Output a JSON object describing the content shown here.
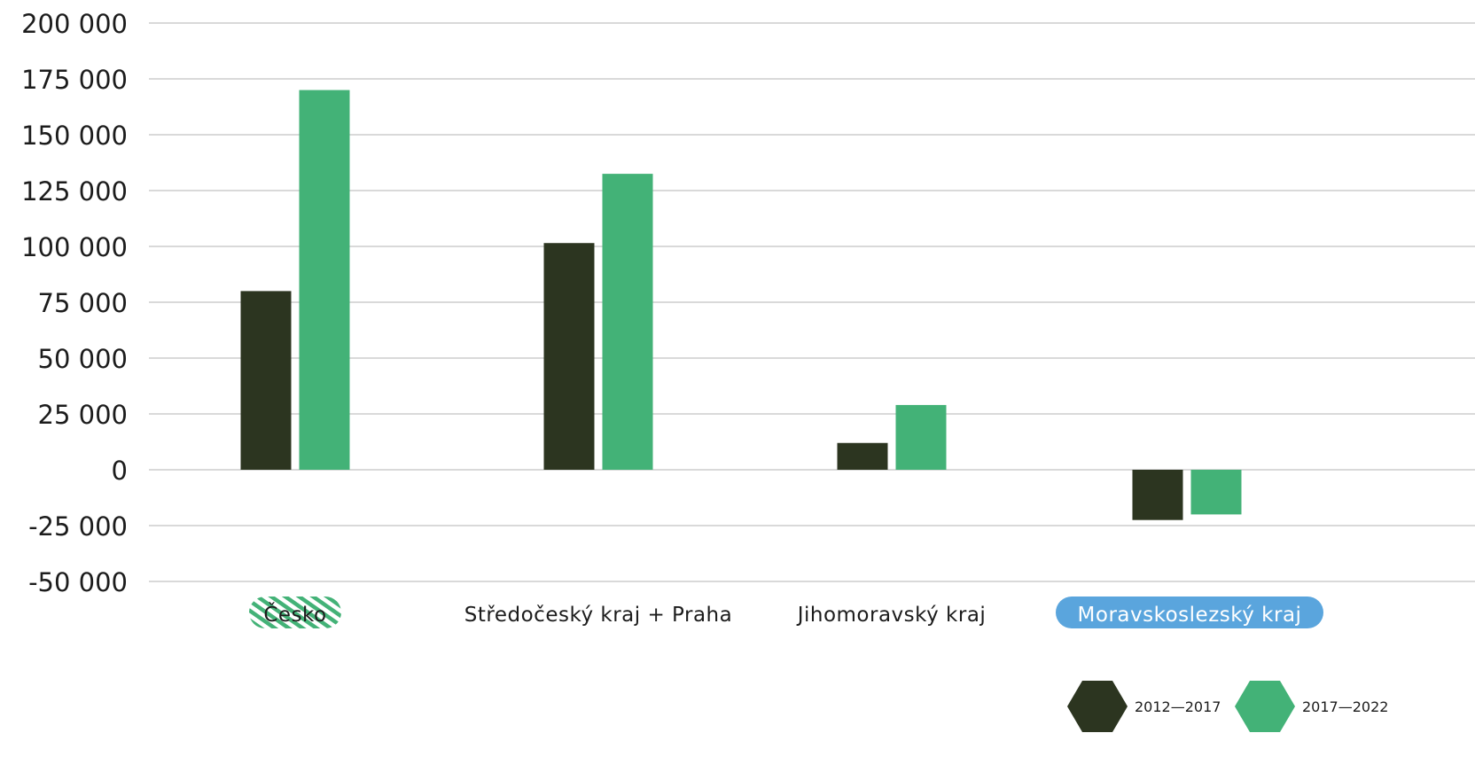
{
  "chart_data": {
    "type": "bar",
    "title": "",
    "xlabel": "",
    "ylabel": "",
    "categories": [
      "Česko",
      "Středočeský kraj + Praha",
      "Jihomoravský kraj",
      "Moravskoslezský kraj"
    ],
    "series": [
      {
        "name": "2012—2017",
        "values": [
          80000,
          101500,
          12000,
          -22500
        ]
      },
      {
        "name": "2017—2022",
        "values": [
          170000,
          132500,
          29000,
          -20000
        ]
      }
    ],
    "ylim": [
      -50000,
      200000
    ],
    "yticks": [
      "200 000",
      "175 000",
      "150 000",
      "125 000",
      "100 000",
      "75 000",
      "50 000",
      "25 000",
      "0",
      "-25 000",
      "-50 000"
    ],
    "ytick_values": [
      200000,
      175000,
      150000,
      125000,
      100000,
      75000,
      50000,
      25000,
      0,
      -25000,
      -50000
    ],
    "grid": true,
    "legend_position": "bottom-right",
    "colors": {
      "series_0": "#2c3520",
      "series_1": "#43b277",
      "grid": "#d9d9d9",
      "highlight_cesko": "#43b277",
      "highlight_moravskoslezsky": "#5aa5dd"
    }
  }
}
